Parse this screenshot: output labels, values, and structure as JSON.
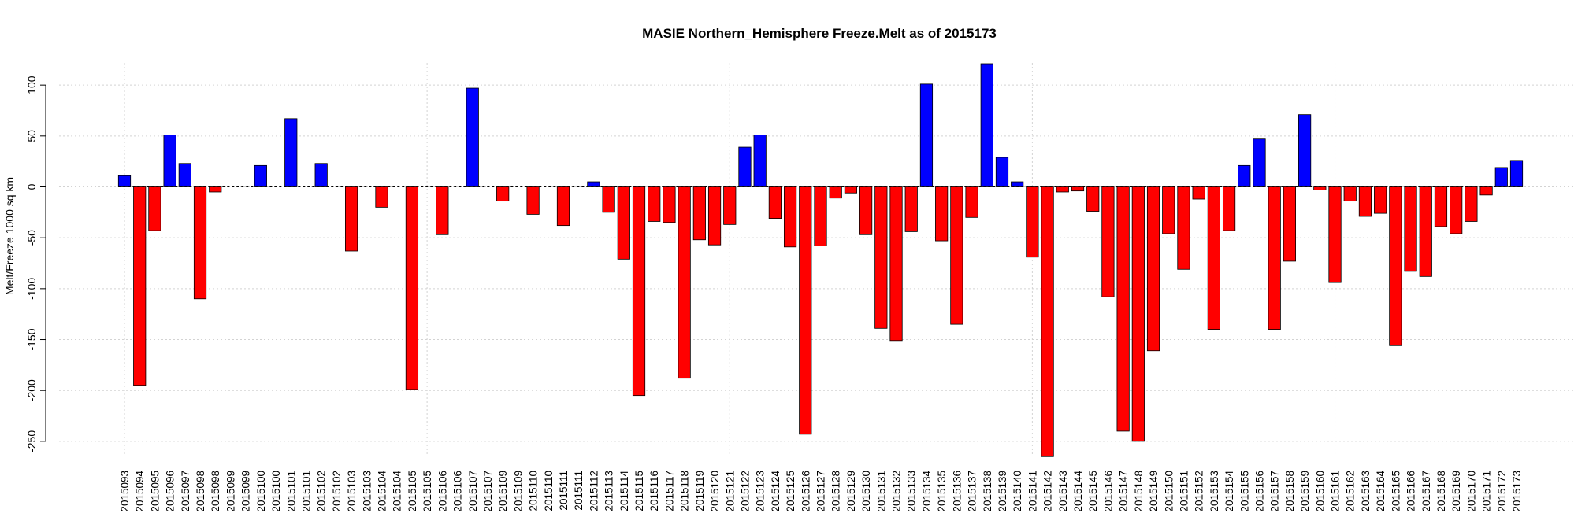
{
  "chart_data": {
    "type": "bar",
    "title": "MASIE Northern_Hemisphere Freeze.Melt as of 2015173",
    "xlabel": "",
    "ylabel": "Melt/Freeze 1000 sq km",
    "ylim": [
      -265,
      122
    ],
    "yticks": [
      -250,
      -200,
      -150,
      -100,
      -50,
      0,
      50,
      100
    ],
    "grid": true,
    "colors": {
      "positive": "#0000ff",
      "negative": "#ff0000",
      "grid": "#d3d3d3"
    },
    "categories": [
      "2015093",
      "2015094",
      "2015095",
      "2015096",
      "2015097",
      "2015098",
      "2015098",
      "2015099",
      "2015099",
      "2015100",
      "2015100",
      "2015101",
      "2015101",
      "2015102",
      "2015102",
      "2015103",
      "2015103",
      "2015104",
      "2015104",
      "2015105",
      "2015105",
      "2015106",
      "2015106",
      "2015107",
      "2015107",
      "2015109",
      "2015109",
      "2015110",
      "2015110",
      "2015111",
      "2015111",
      "2015112",
      "2015113",
      "2015114",
      "2015115",
      "2015116",
      "2015117",
      "2015118",
      "2015119",
      "2015120",
      "2015121",
      "2015122",
      "2015123",
      "2015124",
      "2015125",
      "2015126",
      "2015127",
      "2015128",
      "2015129",
      "2015130",
      "2015131",
      "2015132",
      "2015133",
      "2015134",
      "2015135",
      "2015136",
      "2015137",
      "2015138",
      "2015139",
      "2015140",
      "2015141",
      "2015142",
      "2015143",
      "2015144",
      "2015145",
      "2015146",
      "2015147",
      "2015148",
      "2015149",
      "2015150",
      "2015151",
      "2015152",
      "2015153",
      "2015154",
      "2015155",
      "2015156",
      "2015157",
      "2015158",
      "2015159",
      "2015160",
      "2015161",
      "2015162",
      "2015163",
      "2015164",
      "2015165",
      "2015166",
      "2015167",
      "2015168",
      "2015169",
      "2015170",
      "2015171",
      "2015172",
      "2015173"
    ],
    "values": [
      11,
      -195,
      -43,
      51,
      23,
      -110,
      -5,
      0,
      0,
      21,
      0,
      67,
      0,
      23,
      0,
      -63,
      0,
      -20,
      0,
      -199,
      0,
      -47,
      0,
      97,
      0,
      -14,
      0,
      -27,
      0,
      -38,
      0,
      5,
      -25,
      -71,
      -205,
      -34,
      -35,
      -188,
      -52,
      -57,
      -37,
      39,
      51,
      -31,
      -59,
      -243,
      -58,
      -11,
      -6,
      -47,
      -139,
      -151,
      -44,
      101,
      -53,
      -135,
      -30,
      121,
      29,
      5,
      -69,
      -265,
      -5,
      -4,
      -24,
      -108,
      -240,
      -250,
      -161,
      -46,
      -81,
      -12,
      -140,
      -43,
      21,
      47,
      -140,
      -73,
      71,
      -3,
      -94,
      -14,
      -29,
      -26,
      -156,
      -83,
      -88,
      -39,
      -46,
      -34,
      -8,
      19,
      26
    ]
  }
}
